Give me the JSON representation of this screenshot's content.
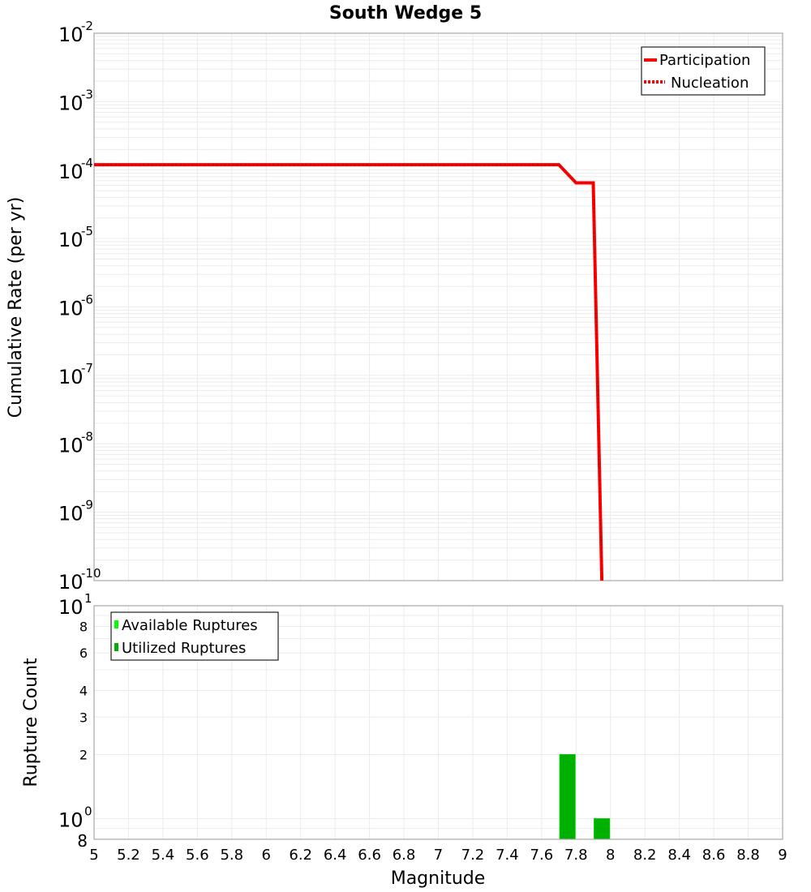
{
  "title": "South Wedge 5",
  "top_panel": {
    "ylabel": "Cumulative Rate (per yr)",
    "ytick_base": "10",
    "ytick_exponents": [
      "-2",
      "-3",
      "-4",
      "-5",
      "-6",
      "-7",
      "-8",
      "-9",
      "-10"
    ],
    "legend": [
      {
        "label": "Participation",
        "style": "solid",
        "color": "#ff0000"
      },
      {
        "label": "Nucleation",
        "style": "dotted",
        "color": "#ff0000"
      }
    ]
  },
  "bottom_panel": {
    "ylabel": "Rupture Count",
    "ytick_major": [
      {
        "base": "10",
        "exp": "1"
      },
      {
        "base": "10",
        "exp": "0"
      }
    ],
    "ytick_minor": [
      "8",
      "6",
      "4",
      "3",
      "2",
      "8"
    ],
    "legend": [
      {
        "label": "Available Ruptures",
        "color": "#00ff00"
      },
      {
        "label": "Utilized Ruptures",
        "color": "#00b000"
      }
    ]
  },
  "xlabel": "Magnitude",
  "xticks": [
    "5",
    "5.2",
    "5.4",
    "5.6",
    "5.8",
    "6",
    "6.2",
    "6.4",
    "6.6",
    "6.8",
    "7",
    "7.2",
    "7.4",
    "7.6",
    "7.8",
    "8",
    "8.2",
    "8.4",
    "8.6",
    "8.8",
    "9"
  ],
  "chart_data": [
    {
      "type": "line",
      "title": "South Wedge 5",
      "xlabel": "Magnitude",
      "ylabel": "Cumulative Rate (per yr)",
      "xlim": [
        5,
        9
      ],
      "ylim": [
        1e-10,
        0.01
      ],
      "yscale": "log",
      "grid": true,
      "legend_position": "upper right",
      "series": [
        {
          "name": "Participation",
          "style": "solid",
          "color": "#ff0000",
          "x": [
            5.0,
            7.7,
            7.8,
            7.9,
            7.95
          ],
          "y": [
            0.00012,
            0.00012,
            6.5e-05,
            6.5e-05,
            1e-10
          ]
        },
        {
          "name": "Nucleation",
          "style": "dotted",
          "color": "#ff0000",
          "x": [
            5.0,
            7.7,
            7.8,
            7.9,
            7.95
          ],
          "y": [
            0.00012,
            0.00012,
            6.5e-05,
            6.5e-05,
            1e-10
          ]
        }
      ]
    },
    {
      "type": "bar",
      "xlabel": "Magnitude",
      "ylabel": "Rupture Count",
      "xlim": [
        5,
        9
      ],
      "ylim": [
        0.8,
        10
      ],
      "yscale": "log",
      "grid": true,
      "legend_position": "upper left",
      "series": [
        {
          "name": "Available Ruptures",
          "color": "#00ff00",
          "x": [
            7.75,
            7.95
          ],
          "values": [
            2,
            1
          ]
        },
        {
          "name": "Utilized Ruptures",
          "color": "#00b000",
          "x": [
            7.75,
            7.95
          ],
          "values": [
            2,
            1
          ]
        }
      ]
    }
  ]
}
